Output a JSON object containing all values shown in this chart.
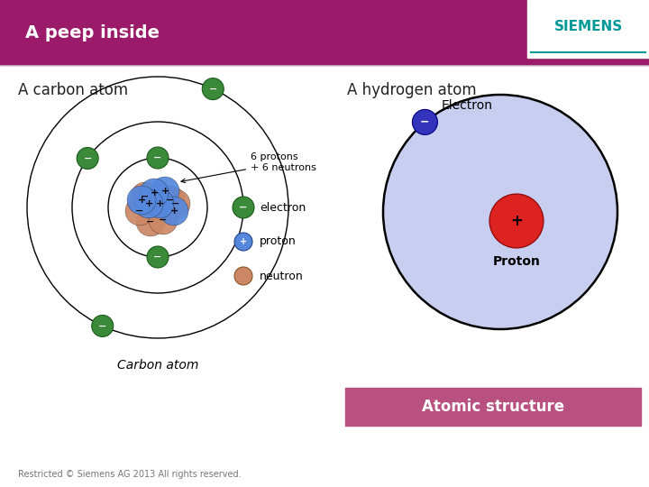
{
  "bg_color": "#ffffff",
  "header_color": "#9b1a6a",
  "header_text": "A peep inside",
  "header_text_color": "#ffffff",
  "header_fontsize": 14,
  "siemens_text": "SIEMENS",
  "siemens_text_color": "#009999",
  "left_title": "A carbon atom",
  "right_title": "A hydrogen atom",
  "subtitle_color": "#222222",
  "subtitle_fontsize": 12,
  "carbon_label": "Carbon atom",
  "atomic_structure_label": "Atomic structure",
  "atomic_structure_bg": "#b85080",
  "atomic_structure_text_color": "#ffffff",
  "footer_text": "Restricted © Siemens AG 2013 All rights reserved.",
  "footer_color": "#777777",
  "electron_color": "#3a8a3a",
  "proton_color": "#5588dd",
  "neutron_color": "#cc8866",
  "h_shell_color": "#c8cef0",
  "h_proton_color": "#dd2222",
  "h_electron_color": "#3333bb"
}
